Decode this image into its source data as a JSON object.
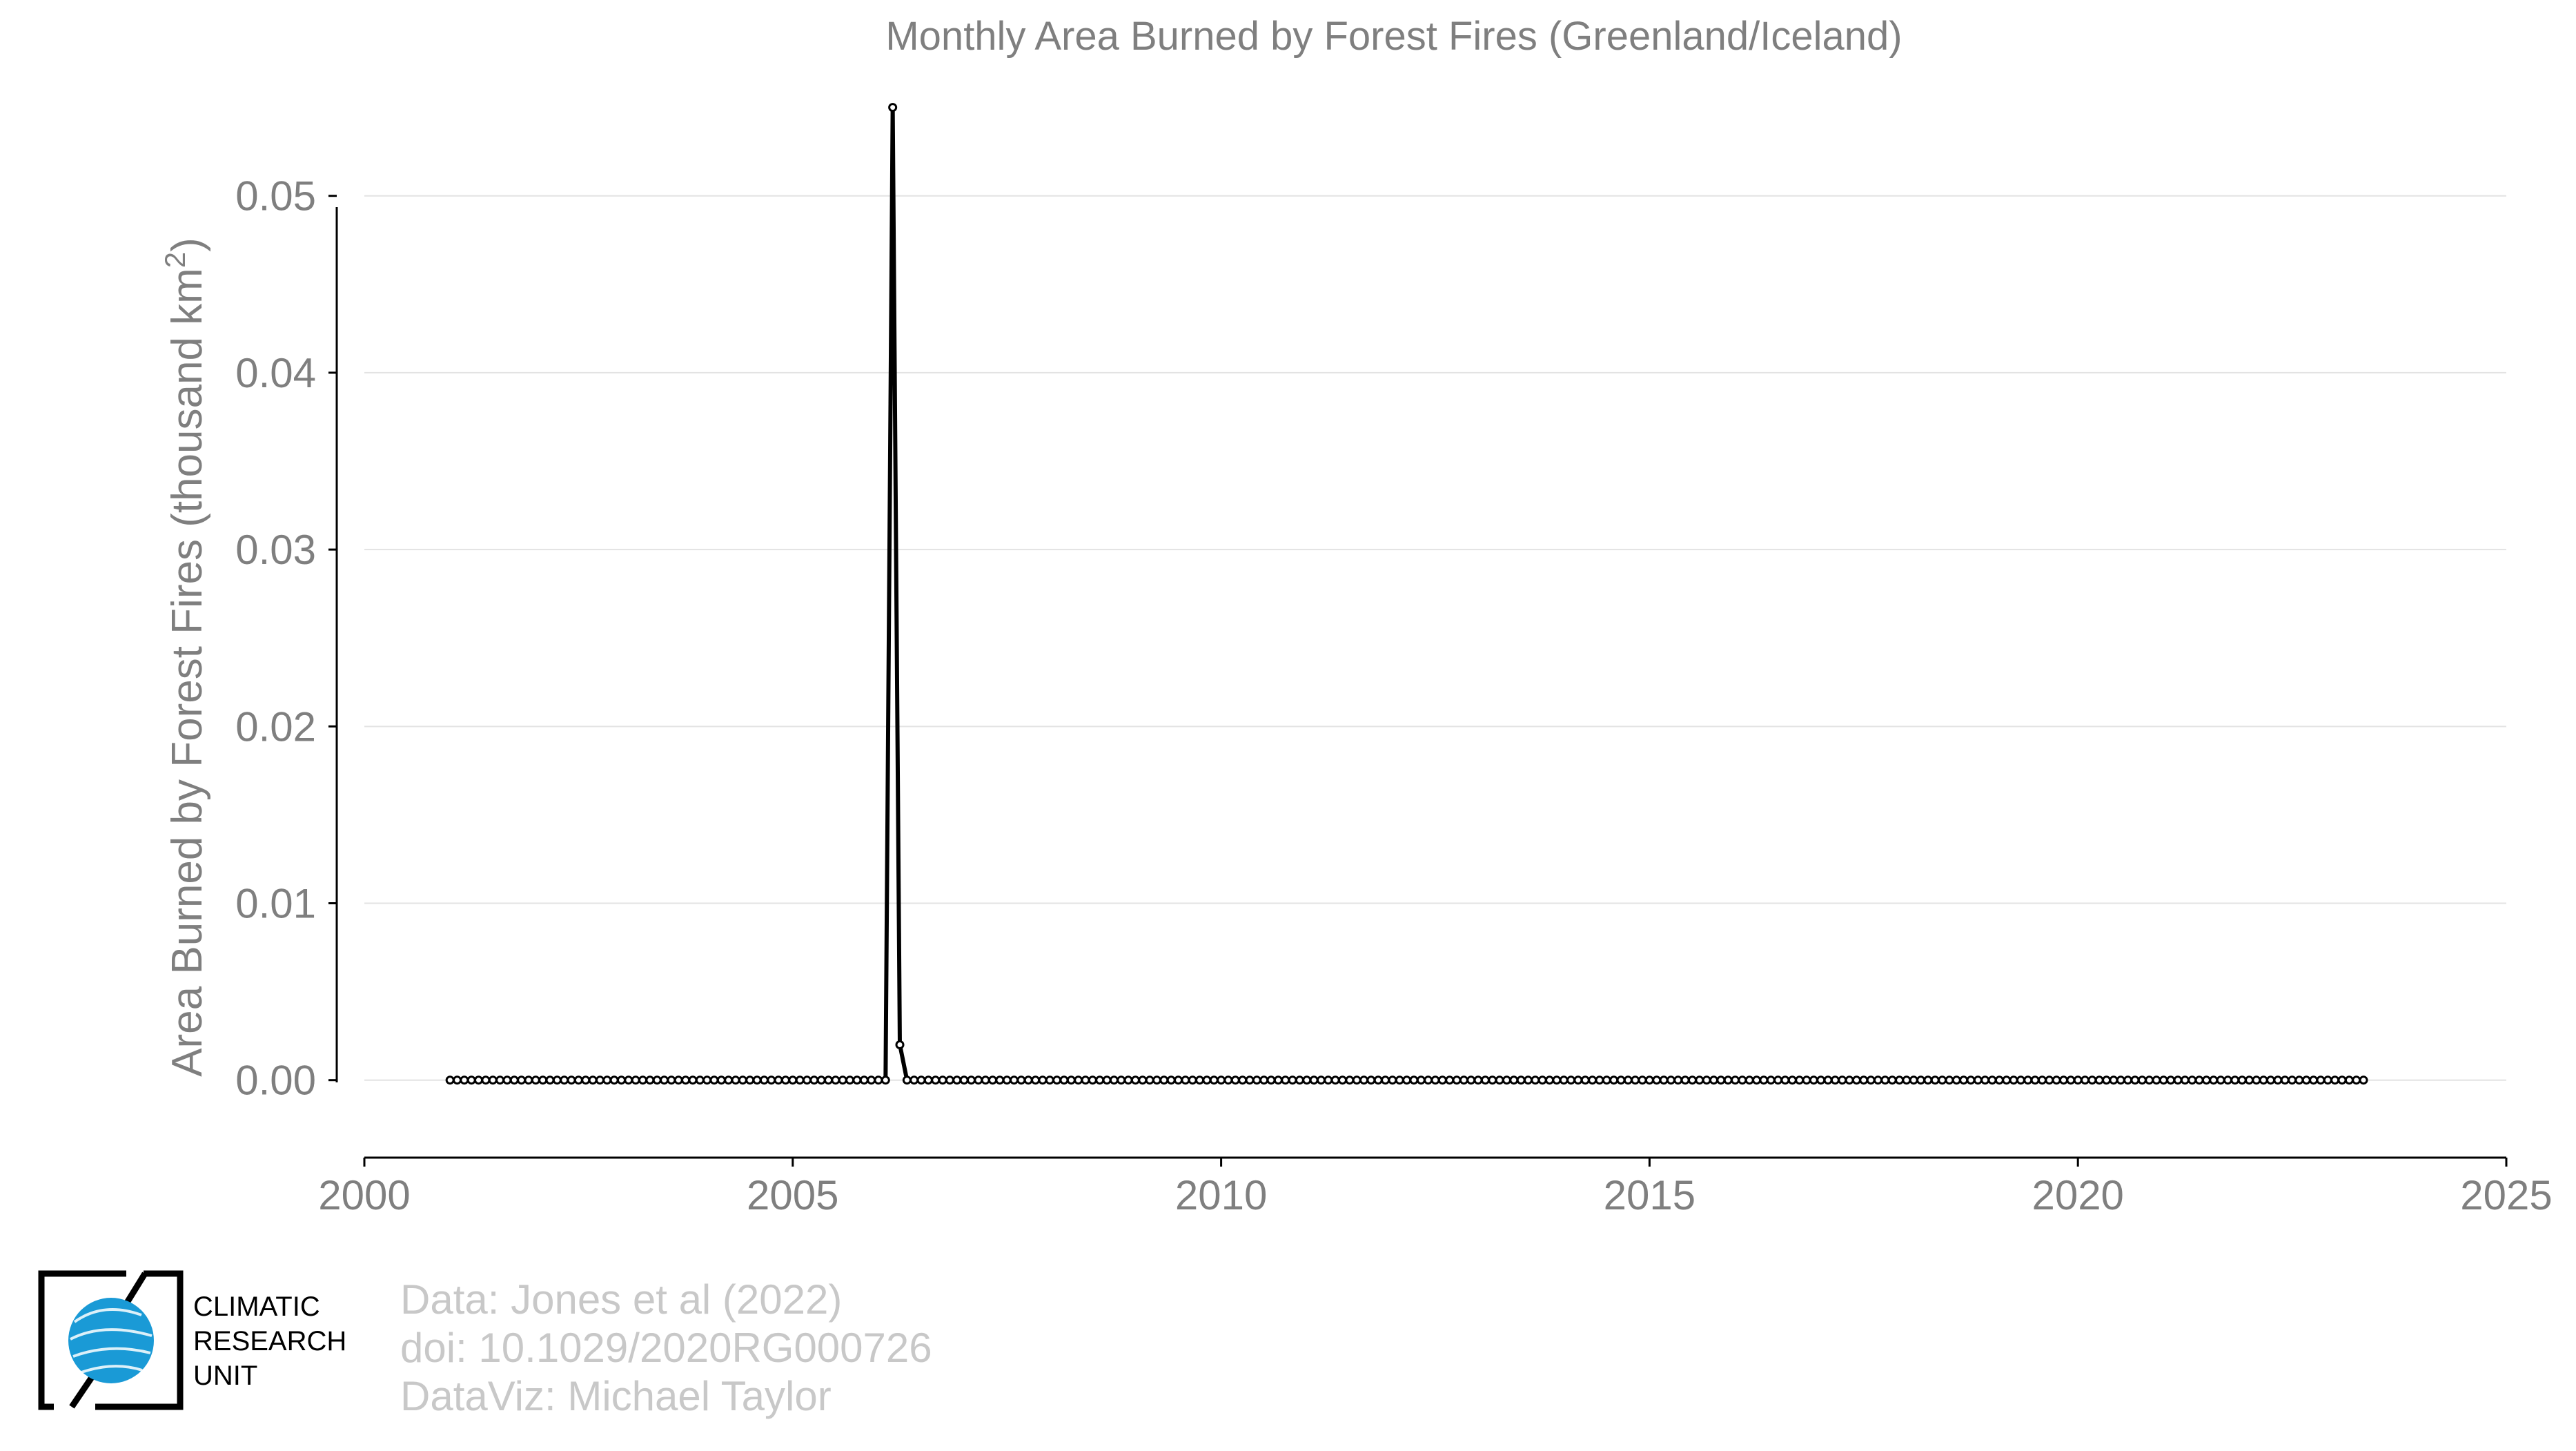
{
  "chart_data": {
    "type": "line",
    "title": "Monthly Area Burned by Forest Fires (Greenland/Iceland)",
    "ylabel": "Area Burned by Forest Fires (thousand km",
    "ylabel_sup": "2",
    "ylabel_close": ")",
    "xlabel": "",
    "xlim": [
      2000,
      2025
    ],
    "ylim": [
      -0.0045,
      0.056
    ],
    "x_ticks": [
      2000,
      2005,
      2010,
      2015,
      2020,
      2025
    ],
    "x_tick_labels": [
      "2000",
      "2005",
      "2010",
      "2015",
      "2020",
      "2025"
    ],
    "y_ticks": [
      0.0,
      0.01,
      0.02,
      0.03,
      0.04,
      0.05
    ],
    "y_tick_labels": [
      "0.00",
      "0.01",
      "0.02",
      "0.03",
      "0.04",
      "0.05"
    ],
    "grid": "horizontal",
    "series": [
      {
        "line_color": "#000000",
        "marker_fill": "#ffffff",
        "start": "2001-01",
        "end": "2023-05",
        "baseline_value": 0.0,
        "nonzero": [
          {
            "date": "2006-03",
            "value": 0.055
          },
          {
            "date": "2006-04",
            "value": 0.002
          }
        ]
      }
    ]
  },
  "credits": {
    "line1": "Data: Jones et al (2022)",
    "line2": "doi: 10.1029/2020RG000726",
    "line3": "DataViz: Michael Taylor"
  },
  "logo": {
    "line1": "CLIMATIC",
    "line2": "RESEARCH",
    "line3": "UNIT",
    "globe_color": "#1a9ad6",
    "frame_color": "#000000"
  }
}
